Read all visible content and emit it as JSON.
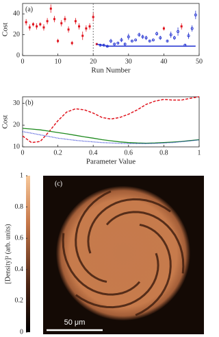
{
  "chart_data": [
    {
      "type": "scatter",
      "label": "(a)",
      "ylabel": "Cost",
      "xlabel": "Run Number",
      "xlim": [
        0,
        50
      ],
      "ylim": [
        0,
        50
      ],
      "xticks": [
        0,
        10,
        20,
        30,
        40,
        50
      ],
      "yticks": [
        0,
        20,
        40
      ],
      "vline": 20,
      "series": [
        {
          "mode": "errorbar",
          "marker": "filled",
          "color": "#e0141e",
          "x": [
            1,
            2,
            3,
            4,
            5,
            6,
            7,
            8,
            9,
            10,
            11,
            12,
            13,
            14,
            15,
            16,
            17,
            18,
            19,
            20,
            21,
            40,
            45
          ],
          "values": [
            32,
            27,
            30,
            28,
            30,
            27,
            33,
            45,
            35,
            14,
            31,
            35,
            25,
            12,
            33,
            28,
            19,
            26,
            28,
            37,
            11,
            26,
            28
          ],
          "errors": [
            3,
            3,
            2,
            3,
            2,
            3,
            3,
            4,
            3,
            2,
            3,
            3,
            3,
            2,
            3,
            3,
            4,
            3,
            3,
            4,
            1,
            2,
            3
          ]
        },
        {
          "mode": "errorbar",
          "marker": "open",
          "color": "#1f2fd0",
          "x": [
            22,
            23,
            24,
            25,
            26,
            27,
            28,
            29,
            30,
            31,
            32,
            33,
            34,
            35,
            36,
            37,
            38,
            39,
            41,
            42,
            43,
            44,
            46,
            47,
            48,
            49
          ],
          "values": [
            10,
            10,
            9,
            14,
            11,
            12,
            15,
            11,
            18,
            14,
            15,
            20,
            18,
            17,
            14,
            15,
            21,
            17,
            14,
            20,
            17,
            23,
            10,
            19,
            26,
            39
          ],
          "errors": [
            1,
            1,
            1,
            2,
            1,
            1,
            2,
            1,
            3,
            1,
            1,
            2,
            2,
            2,
            1,
            1,
            2,
            2,
            1,
            3,
            2,
            4,
            1,
            3,
            3,
            4
          ]
        },
        {
          "mode": "line",
          "color": "#1f2fd0",
          "x": [
            21,
            24,
            49
          ],
          "values": [
            11,
            9,
            9
          ]
        }
      ]
    },
    {
      "type": "line",
      "label": "(b)",
      "ylabel": "Cost",
      "xlabel": "Parameter Value",
      "xlim": [
        0,
        1
      ],
      "ylim": [
        10,
        33
      ],
      "xticks": [
        0,
        0.2,
        0.4,
        0.6,
        0.8,
        1
      ],
      "yticks": [
        10,
        20,
        30
      ],
      "x": [
        0,
        0.05,
        0.1,
        0.15,
        0.2,
        0.25,
        0.3,
        0.35,
        0.4,
        0.45,
        0.5,
        0.55,
        0.6,
        0.65,
        0.7,
        0.75,
        0.8,
        0.85,
        0.9,
        0.95,
        1
      ],
      "series": [
        {
          "color": "#e0141e",
          "dash": true,
          "values": [
            15,
            12,
            12.5,
            17,
            22,
            26,
            27.5,
            27,
            25.5,
            23.5,
            22.8,
            23.5,
            25,
            27,
            29.5,
            31,
            31.8,
            31.5,
            31.5,
            32.3,
            33
          ]
        },
        {
          "color": "#1e8a1e",
          "dash": false,
          "values": [
            18.5,
            18.2,
            17.8,
            17.2,
            16.6,
            16,
            15.3,
            14.6,
            14,
            13.3,
            12.8,
            12.3,
            12,
            11.8,
            11.7,
            11.8,
            12,
            12.2,
            12.5,
            12.9,
            13.3
          ]
        },
        {
          "color": "#1f2fd0",
          "dotted": true,
          "values": [
            17,
            16.3,
            15.5,
            14.8,
            14,
            13.5,
            13,
            12.6,
            12.3,
            12,
            11.8,
            11.6,
            11.5,
            11.5,
            11.5,
            11.6,
            11.8,
            12,
            12.4,
            12.8,
            13.2
          ]
        }
      ]
    },
    {
      "type": "image",
      "label": "(c)",
      "colorbar_label": "[Density]² (arb. units)",
      "ylim": [
        0,
        1
      ],
      "yticks": [
        0,
        0.2,
        0.4,
        0.6,
        0.8,
        1
      ],
      "scale_bar": "50 μm"
    }
  ]
}
